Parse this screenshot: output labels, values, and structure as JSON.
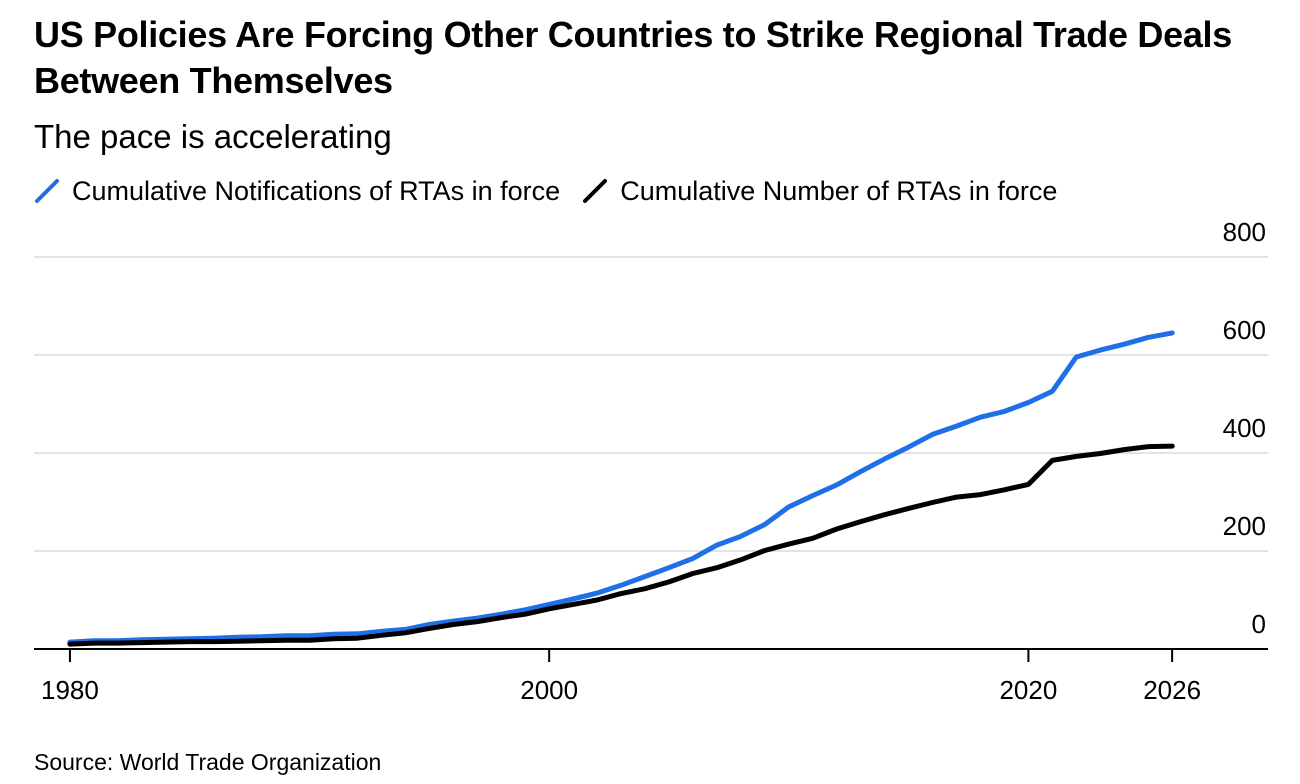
{
  "title": "US Policies Are Forcing Other Countries to Strike Regional Trade Deals Between Themselves",
  "subtitle": "The pace is accelerating",
  "source": "Source: World Trade Organization",
  "colors": {
    "notifications": "#1f6fe8",
    "number": "#000000",
    "grid": "#e3e3e3",
    "axis": "#000000"
  },
  "chart_data": {
    "type": "line",
    "xlabel": "",
    "ylabel": "",
    "xlim": [
      1978.5,
      2030
    ],
    "ylim": [
      0,
      800
    ],
    "x_ticks": [
      1980,
      2000,
      2020,
      2026
    ],
    "y_ticks": [
      0,
      200,
      400,
      600,
      800
    ],
    "x_tick_labels": [
      "1980",
      "2000",
      "2020",
      "2026"
    ],
    "y_tick_labels": [
      "0",
      "200",
      "400",
      "600",
      "800"
    ],
    "legend": [
      "Cumulative Notifications of RTAs in force",
      "Cumulative Number of RTAs in force"
    ],
    "x": [
      1980,
      1981,
      1982,
      1983,
      1984,
      1985,
      1986,
      1987,
      1988,
      1989,
      1990,
      1991,
      1992,
      1993,
      1994,
      1995,
      1996,
      1997,
      1998,
      1999,
      2000,
      2001,
      2002,
      2003,
      2004,
      2005,
      2006,
      2007,
      2008,
      2009,
      2010,
      2011,
      2012,
      2013,
      2014,
      2015,
      2016,
      2017,
      2018,
      2019,
      2020,
      2021,
      2022,
      2023,
      2024,
      2025,
      2026
    ],
    "series": [
      {
        "name": "Cumulative Notifications of RTAs in force",
        "values": [
          14,
          17,
          17,
          19,
          20,
          21,
          22,
          24,
          25,
          27,
          27,
          30,
          31,
          36,
          40,
          50,
          57,
          63,
          71,
          80,
          91,
          102,
          114,
          130,
          148,
          166,
          185,
          212,
          230,
          254,
          290,
          313,
          335,
          362,
          388,
          412,
          438,
          455,
          473,
          485,
          503,
          526,
          596,
          610,
          622,
          636,
          645
        ]
      },
      {
        "name": "Cumulative Number of RTAs in force",
        "values": [
          10,
          12,
          12,
          13,
          14,
          15,
          15,
          16,
          17,
          18,
          18,
          21,
          22,
          28,
          33,
          42,
          50,
          56,
          64,
          71,
          82,
          91,
          100,
          113,
          123,
          137,
          154,
          166,
          182,
          201,
          214,
          226,
          245,
          260,
          274,
          287,
          299,
          310,
          315,
          325,
          336,
          385,
          393,
          399,
          407,
          413,
          414
        ]
      }
    ]
  }
}
